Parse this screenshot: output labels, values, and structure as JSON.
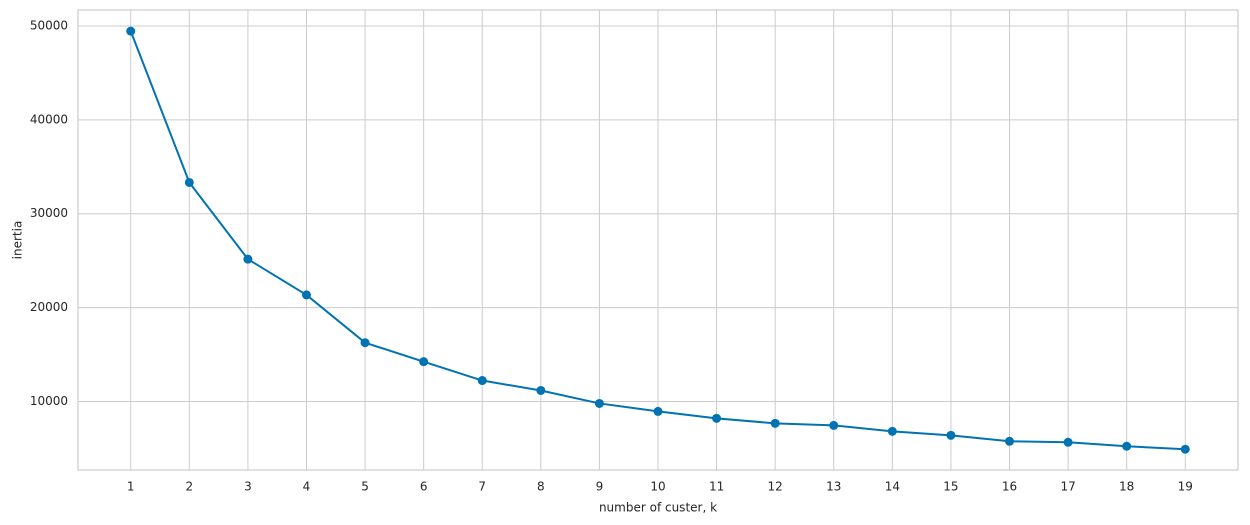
{
  "chart_data": {
    "type": "line",
    "x_label": "number of custer, k",
    "y_label": "inertia",
    "x": [
      1,
      2,
      3,
      4,
      5,
      6,
      7,
      8,
      9,
      10,
      11,
      12,
      13,
      14,
      15,
      16,
      17,
      18,
      19
    ],
    "series": [
      {
        "color": "#0173b2",
        "values": [
          49450,
          33330,
          25160,
          21350,
          16260,
          14240,
          12230,
          11170,
          9790,
          8940,
          8200,
          7670,
          7450,
          6820,
          6390,
          5760,
          5650,
          5230,
          4910
        ]
      }
    ],
    "xlim": [
      0.1,
      19.9
    ],
    "ylim": [
      2700,
      51700
    ],
    "xticks": [
      1,
      2,
      3,
      4,
      5,
      6,
      7,
      8,
      9,
      10,
      11,
      12,
      13,
      14,
      15,
      16,
      17,
      18,
      19
    ],
    "yticks": [
      10000,
      20000,
      30000,
      40000,
      50000
    ],
    "grid": true,
    "markers": true
  }
}
